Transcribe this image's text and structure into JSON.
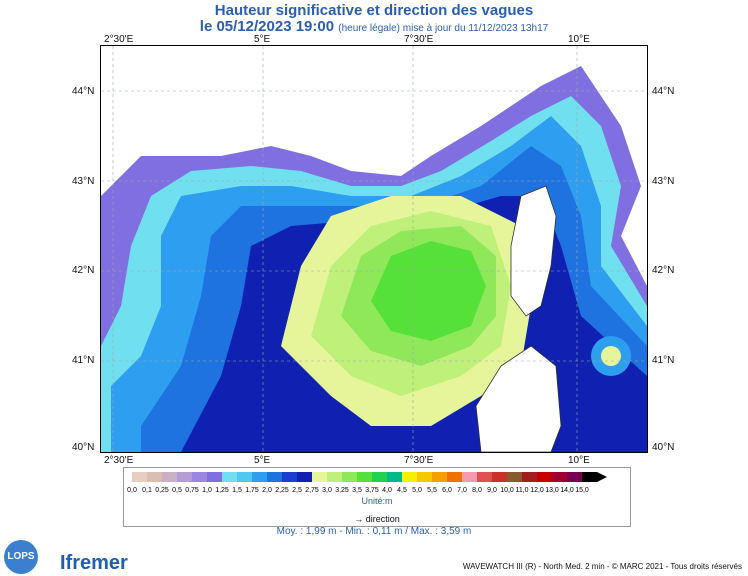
{
  "title": "Hauteur significative et direction des vagues",
  "subtitle_date": "le 05/12/2023 19:00",
  "subtitle_note": "(heure légale) mise à jour du 11/12/2023 13h17",
  "axes": {
    "top_lon": [
      "2°30'E",
      "5°E",
      "7°30'E",
      "10°E"
    ],
    "bottom_lon": [
      "2°30'E",
      "5°E",
      "7°30'E",
      "10°E"
    ],
    "lat": [
      "44°N",
      "43°N",
      "42°N",
      "41°N",
      "40°N"
    ]
  },
  "legend": {
    "labels": [
      "0,0",
      "0,1",
      "0,25",
      "0,5",
      "0,75",
      "1,0",
      "1,25",
      "1,5",
      "1,75",
      "2,0",
      "2,25",
      "2,5",
      "2,75",
      "3,0",
      "3,25",
      "3,5",
      "3,75",
      "4,0",
      "4,5",
      "5,0",
      "5,5",
      "6,0",
      "7,0",
      "8,0",
      "9,0",
      "10,0",
      "11,0",
      "12,0",
      "13,0",
      "14,0",
      "15,0"
    ],
    "colors": [
      "#e6cfc2",
      "#d8bfb2",
      "#c9b0c4",
      "#b49cd6",
      "#9b86e0",
      "#7f6fe0",
      "#70e0f0",
      "#50c8f0",
      "#2e9ff0",
      "#1f73e0",
      "#1a3fd0",
      "#1020b0",
      "#e6f59a",
      "#bff07a",
      "#8fe85a",
      "#55e03a",
      "#20d050",
      "#00b88a",
      "#f5f000",
      "#f5c800",
      "#f5a000",
      "#f07000",
      "#f59bb0",
      "#e05050",
      "#c8322a",
      "#8b5a2b",
      "#a01e1e",
      "#c80000",
      "#a00030",
      "#780050",
      "#000000"
    ],
    "unit": "Unité:m",
    "direction": "direction"
  },
  "stats": "Moy. : 1,99 m  -  Min. : 0,11 m / Max. : 3,59 m",
  "footer": "WAVEWATCH III (R) - North Med. 2 min - © MARC 2021 - Tous droits réservés",
  "logos": {
    "left": "LOPS",
    "right": "Ifremer"
  }
}
